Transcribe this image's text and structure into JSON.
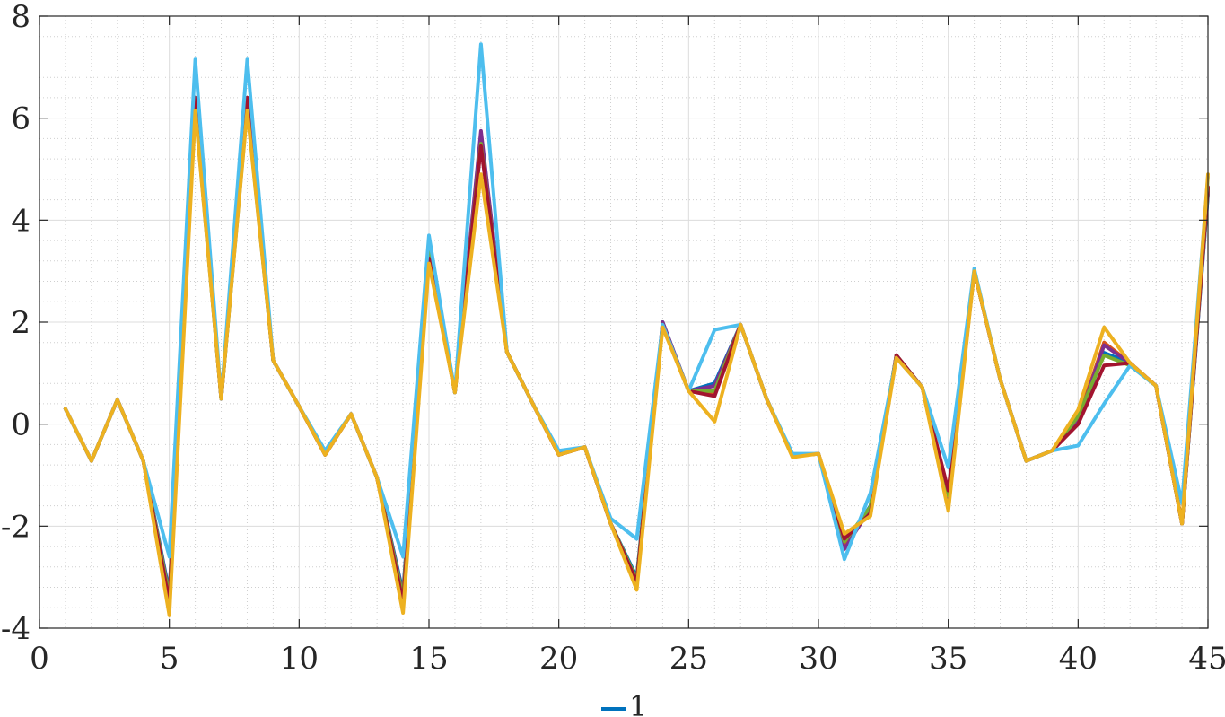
{
  "chart_data": {
    "type": "line",
    "title": "",
    "xlabel": "",
    "ylabel": "",
    "xlim": [
      0,
      45
    ],
    "ylim": [
      -4,
      8
    ],
    "xticks": [
      0,
      5,
      10,
      15,
      20,
      25,
      30,
      35,
      40,
      45
    ],
    "yticks": [
      -4,
      -2,
      0,
      2,
      4,
      6,
      8
    ],
    "xtick_labels": [
      "0",
      "5",
      "10",
      "15",
      "20",
      "25",
      "30",
      "35",
      "40",
      "45"
    ],
    "ytick_labels": [
      "-4",
      "-2",
      "0",
      "2",
      "4",
      "6",
      "8"
    ],
    "grid": true,
    "minor_grid": true,
    "legend_position": "bottom-center",
    "legend": [
      {
        "label": "1",
        "color": "#0072BD"
      }
    ],
    "x": [
      1,
      2,
      3,
      4,
      5,
      6,
      7,
      8,
      9,
      10,
      11,
      12,
      13,
      14,
      15,
      16,
      17,
      18,
      19,
      20,
      21,
      22,
      23,
      24,
      25,
      26,
      27,
      28,
      29,
      30,
      31,
      32,
      33,
      34,
      35,
      36,
      37,
      38,
      39,
      40,
      41,
      42,
      43,
      44,
      45
    ],
    "series": [
      {
        "color": "#0072BD",
        "values": [
          0.3,
          -0.72,
          0.48,
          -0.72,
          -3.3,
          6.2,
          0.5,
          6.2,
          1.25,
          0.35,
          -0.58,
          0.2,
          -1.05,
          -3.3,
          3.5,
          0.62,
          5.6,
          1.42,
          0.4,
          -0.58,
          -0.45,
          -1.95,
          -3.0,
          2.0,
          0.65,
          0.8,
          1.95,
          0.5,
          -0.62,
          -0.58,
          -2.4,
          -1.6,
          1.35,
          0.72,
          -1.45,
          3.0,
          0.88,
          -0.72,
          -0.52,
          0.05,
          1.4,
          1.2,
          0.75,
          -1.95,
          4.5
        ]
      },
      {
        "color": "#D95319",
        "values": [
          0.3,
          -0.72,
          0.48,
          -0.72,
          -3.45,
          6.35,
          0.5,
          6.35,
          1.25,
          0.35,
          -0.6,
          0.2,
          -1.05,
          -3.45,
          3.3,
          0.62,
          5.6,
          1.42,
          0.4,
          -0.6,
          -0.45,
          -1.95,
          -3.1,
          1.95,
          0.65,
          0.6,
          1.95,
          0.5,
          -0.63,
          -0.58,
          -2.35,
          -1.7,
          1.35,
          0.72,
          -1.55,
          3.0,
          0.88,
          -0.72,
          -0.52,
          0.1,
          1.6,
          1.2,
          0.75,
          -1.95,
          4.6
        ]
      },
      {
        "color": "#7E2F8E",
        "values": [
          0.3,
          -0.72,
          0.48,
          -0.72,
          -3.35,
          6.3,
          0.5,
          6.3,
          1.25,
          0.35,
          -0.58,
          0.2,
          -1.05,
          -3.35,
          3.45,
          0.62,
          5.75,
          1.42,
          0.4,
          -0.58,
          -0.45,
          -1.95,
          -3.05,
          2.0,
          0.65,
          0.75,
          1.95,
          0.5,
          -0.62,
          -0.58,
          -2.45,
          -1.65,
          1.35,
          0.72,
          -1.5,
          3.0,
          0.88,
          -0.72,
          -0.52,
          0.05,
          1.55,
          1.2,
          0.75,
          -1.95,
          4.55
        ]
      },
      {
        "color": "#77AC30",
        "values": [
          0.3,
          -0.72,
          0.48,
          -0.72,
          -3.4,
          6.25,
          0.5,
          6.25,
          1.25,
          0.35,
          -0.6,
          0.2,
          -1.05,
          -3.4,
          3.4,
          0.62,
          5.5,
          1.42,
          0.4,
          -0.6,
          -0.45,
          -1.95,
          -3.05,
          1.95,
          0.65,
          0.65,
          1.95,
          0.5,
          -0.63,
          -0.58,
          -2.3,
          -1.62,
          1.35,
          0.72,
          -1.4,
          3.0,
          0.88,
          -0.72,
          -0.52,
          0.15,
          1.35,
          1.15,
          0.75,
          -1.95,
          4.6
        ]
      },
      {
        "color": "#A2142F",
        "values": [
          0.3,
          -0.72,
          0.48,
          -0.72,
          -3.5,
          6.4,
          0.5,
          6.4,
          1.25,
          0.35,
          -0.6,
          0.2,
          -1.05,
          -3.5,
          3.25,
          0.62,
          5.45,
          1.42,
          0.4,
          -0.6,
          -0.45,
          -1.95,
          -3.1,
          1.95,
          0.65,
          0.55,
          1.95,
          0.5,
          -0.63,
          -0.58,
          -2.25,
          -1.75,
          1.35,
          0.72,
          -1.3,
          3.0,
          0.88,
          -0.72,
          -0.52,
          0.0,
          1.15,
          1.2,
          0.75,
          -1.95,
          4.65
        ]
      },
      {
        "color": "#4DBEEE",
        "values": [
          0.3,
          -0.72,
          0.48,
          -0.72,
          -2.6,
          7.15,
          0.5,
          7.15,
          1.25,
          0.35,
          -0.52,
          0.2,
          -1.05,
          -2.6,
          3.7,
          0.62,
          7.45,
          1.42,
          0.4,
          -0.52,
          -0.45,
          -1.85,
          -2.25,
          1.95,
          0.65,
          1.85,
          1.95,
          0.5,
          -0.58,
          -0.58,
          -2.65,
          -1.35,
          1.3,
          0.72,
          -0.85,
          3.05,
          0.88,
          -0.72,
          -0.52,
          -0.42,
          0.4,
          1.15,
          0.75,
          -1.55,
          4.85
        ]
      },
      {
        "color": "#EDB120",
        "values": [
          0.3,
          -0.72,
          0.48,
          -0.72,
          -3.75,
          6.15,
          0.5,
          6.15,
          1.25,
          0.35,
          -0.6,
          0.2,
          -1.05,
          -3.7,
          3.15,
          0.62,
          4.9,
          1.42,
          0.4,
          -0.6,
          -0.45,
          -1.95,
          -3.25,
          1.9,
          0.65,
          0.05,
          1.95,
          0.5,
          -0.65,
          -0.58,
          -2.15,
          -1.8,
          1.3,
          0.72,
          -1.7,
          3.0,
          0.88,
          -0.72,
          -0.52,
          0.28,
          1.9,
          1.2,
          0.75,
          -1.95,
          4.9
        ]
      }
    ]
  }
}
